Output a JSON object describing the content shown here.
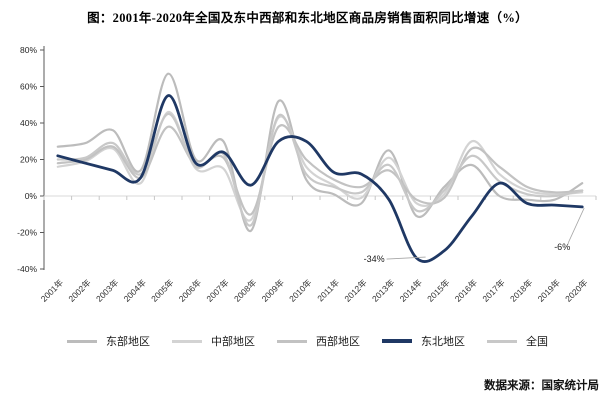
{
  "title": "图：2001年-2020年全国及东中西部和东北地区商品房销售面积同比增速（%）",
  "source": "数据来源：国家统计局",
  "chart_data": {
    "type": "line",
    "title": "图：2001年-2020年全国及东中西部和东北地区商品房销售面积同比增速（%）",
    "xlabel": "",
    "ylabel": "",
    "ylim": [
      -40,
      80
    ],
    "ytick_step": 20,
    "ytick_labels": [
      "80%",
      "60%",
      "40%",
      "20%",
      "0%",
      "-20%",
      "-40%"
    ],
    "grid": "zero-line-only",
    "legend_position": "bottom",
    "line_style": "smooth",
    "categories": [
      "2001年",
      "2002年",
      "2003年",
      "2004年",
      "2005年",
      "2006年",
      "2007年",
      "2008年",
      "2009年",
      "2010年",
      "2011年",
      "2012年",
      "2013年",
      "2014年",
      "2015年",
      "2016年",
      "2017年",
      "2018年",
      "2019年",
      "2020年"
    ],
    "series": [
      {
        "name": "东部地区",
        "key": "east",
        "color": "#bcbcbc",
        "emphasis": false,
        "values": [
          27,
          29,
          36,
          14,
          67,
          20,
          30,
          -19,
          52,
          9,
          1,
          -4,
          25,
          -11,
          5,
          17,
          0,
          -2,
          -2,
          7
        ]
      },
      {
        "name": "中部地区",
        "key": "central",
        "color": "#d3d3d3",
        "emphasis": false,
        "values": [
          16,
          19,
          26,
          7,
          46,
          15,
          15,
          -13,
          43,
          16,
          6,
          -1,
          21,
          -4,
          1,
          30,
          12,
          3,
          1,
          2
        ]
      },
      {
        "name": "西部地区",
        "key": "west",
        "color": "#c2c2c2",
        "emphasis": false,
        "values": [
          18,
          20,
          27,
          10,
          38,
          17,
          21,
          -10,
          38,
          20,
          9,
          5,
          14,
          -2,
          -1,
          26,
          16,
          5,
          2,
          3
        ]
      },
      {
        "name": "东北地区",
        "key": "northeast",
        "color": "#1f3864",
        "emphasis": true,
        "values": [
          22,
          18,
          14,
          10,
          55,
          18,
          24,
          6,
          30,
          30,
          13,
          12,
          -2,
          -34,
          -30,
          -11,
          7,
          -4,
          -5,
          -6
        ]
      },
      {
        "name": "全国",
        "key": "national",
        "color": "#c8c8c8",
        "emphasis": false,
        "values": [
          20,
          21,
          29,
          12,
          45,
          16,
          23,
          -16,
          44,
          12,
          5,
          2,
          17,
          -8,
          3,
          22,
          8,
          1,
          0,
          3
        ]
      }
    ],
    "annotations": [
      {
        "label": "-34%",
        "series": "northeast",
        "category_index": 13,
        "value": -34,
        "placement": "left"
      },
      {
        "label": "-6%",
        "series": "northeast",
        "category_index": 19,
        "value": -6,
        "placement": "below"
      }
    ]
  }
}
